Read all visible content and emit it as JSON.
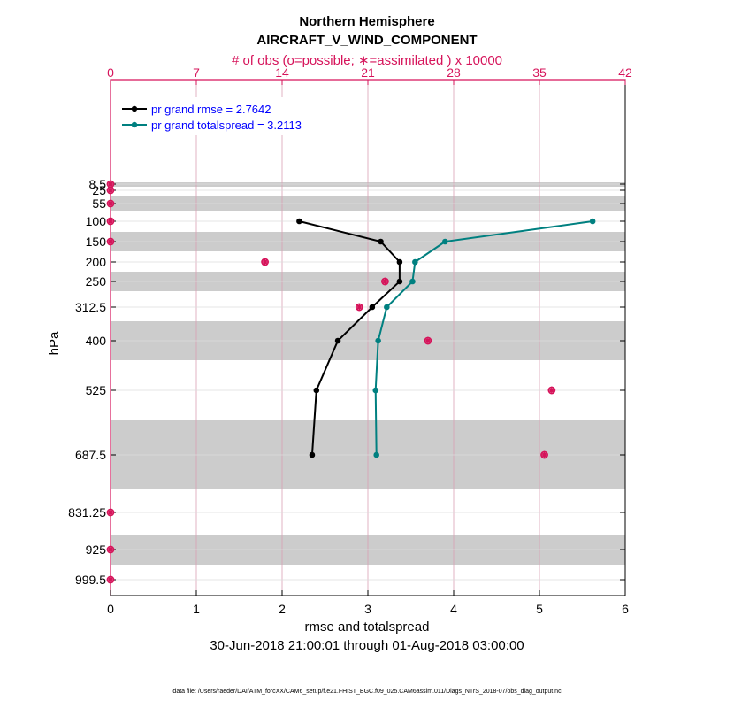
{
  "chart_data": {
    "type": "line",
    "title": "Northern Hemisphere",
    "subtitle": "AIRCRAFT_V_WIND_COMPONENT",
    "top_axis_label": "# of obs (o=possible; ∗=assimilated ) x 10000",
    "xlabel": "rmse and totalspread",
    "ylabel": "hPa",
    "date_range": "30-Jun-2018 21:00:01 through 01-Aug-2018 03:00:00",
    "footnote": "data file: /Users/raeder/DAI/ATM_forcXX/CAM6_setup/f.e21.FHIST_BGC.f09_025.CAM6assim.011/Diags_NTrS_2018-07/obs_diag_output.nc",
    "xlim": [
      0,
      6
    ],
    "xticks": [
      0,
      1,
      2,
      3,
      4,
      5,
      6
    ],
    "top_xlim": [
      0,
      42
    ],
    "top_xticks": [
      0,
      7,
      14,
      21,
      28,
      35,
      42
    ],
    "levels": [
      8.5,
      25,
      55,
      100,
      150,
      200,
      250,
      312.5,
      400,
      525,
      687.5,
      831.25,
      925,
      999.5
    ],
    "level_labels": [
      "8.5",
      "25",
      "55",
      "100",
      "150",
      "200",
      "250",
      "312.5",
      "400",
      "525",
      "687.5",
      "831.25",
      "925",
      "999.5"
    ],
    "colors": {
      "rmse": "#000000",
      "totalspread": "#008080",
      "obs": "#d6135a",
      "legend_text": "#0000ff",
      "band": "#cccccc",
      "grid": "#d9a0b4"
    },
    "series": [
      {
        "name": "pr grand rmse = 2.7642",
        "key": "rmse",
        "levels": [
          100,
          150,
          200,
          250,
          312.5,
          400,
          525,
          687.5
        ],
        "values": [
          2.2,
          3.15,
          3.37,
          3.37,
          3.05,
          2.65,
          2.4,
          2.35
        ]
      },
      {
        "name": "pr grand totalspread = 3.2113",
        "key": "totalspread",
        "levels": [
          100,
          150,
          200,
          250,
          312.5,
          400,
          525,
          687.5
        ],
        "values": [
          5.62,
          3.9,
          3.55,
          3.52,
          3.22,
          3.12,
          3.09,
          3.1
        ]
      }
    ],
    "obs_counts": {
      "levels": [
        8.5,
        25,
        55,
        100,
        150,
        200,
        250,
        312.5,
        400,
        525,
        687.5,
        831.25,
        925,
        999.5
      ],
      "possible": [
        0,
        0,
        0,
        0,
        0,
        12.6,
        22.4,
        20.3,
        25.9,
        36.0,
        35.4,
        0,
        0,
        0
      ],
      "assimilated": [
        0,
        0,
        0,
        0,
        0,
        12.6,
        22.4,
        20.3,
        25.9,
        36.0,
        35.4,
        0,
        0,
        0
      ]
    }
  }
}
